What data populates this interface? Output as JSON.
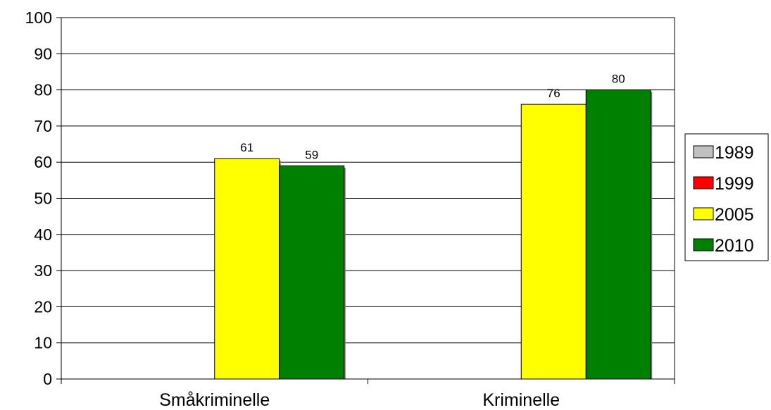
{
  "chart_data": {
    "type": "bar",
    "categories": [
      "Småkriminelle",
      "Kriminelle"
    ],
    "series": [
      {
        "name": "1989",
        "values": [
          0,
          0
        ],
        "color": "#c0c0c0"
      },
      {
        "name": "1999",
        "values": [
          0,
          0
        ],
        "color": "#ff0000"
      },
      {
        "name": "2005",
        "values": [
          61,
          76
        ],
        "color": "#ffff00"
      },
      {
        "name": "2010",
        "values": [
          59,
          80
        ],
        "color": "#008000"
      }
    ],
    "data_labels": [
      {
        "series": 2,
        "category": 0,
        "text": "61"
      },
      {
        "series": 3,
        "category": 0,
        "text": "59"
      },
      {
        "series": 2,
        "category": 1,
        "text": "76"
      },
      {
        "series": 3,
        "category": 1,
        "text": "80"
      }
    ],
    "yticks": [
      "0",
      "10",
      "20",
      "30",
      "40",
      "50",
      "60",
      "70",
      "80",
      "90",
      "100"
    ],
    "ylim": [
      0,
      100
    ],
    "grid": true,
    "legend_position": "right",
    "title": "",
    "xlabel": "",
    "ylabel": ""
  }
}
